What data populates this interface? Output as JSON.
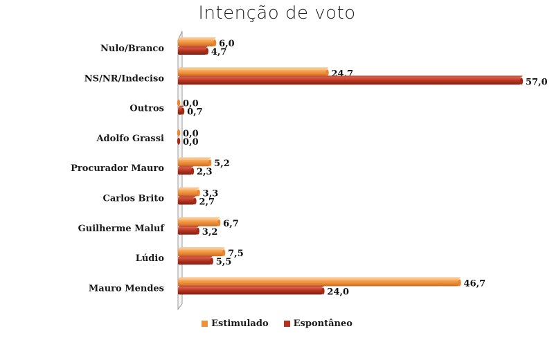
{
  "chart_data": {
    "type": "bar",
    "orientation": "horizontal",
    "title": "Intenção de voto",
    "categories": [
      "Nulo/Branco",
      "NS/NR/Indeciso",
      "Outros",
      "Adolfo Grassi",
      "Procurador Mauro",
      "Carlos Brito",
      "Guilherme Maluf",
      "Lúdio",
      "Mauro Mendes"
    ],
    "series": [
      {
        "name": "Estimulado",
        "color": "#F0913A",
        "values": [
          6.0,
          24.7,
          0.0,
          0.0,
          5.2,
          3.3,
          6.7,
          7.5,
          46.7
        ],
        "labels": [
          "6,0",
          "24,7",
          "0,0",
          "0,0",
          "5,2",
          "3,3",
          "6,7",
          "7,5",
          "46,7"
        ]
      },
      {
        "name": "Espontâneo",
        "color": "#B5321E",
        "values": [
          4.7,
          57.0,
          0.7,
          0.0,
          2.3,
          2.7,
          3.2,
          5.5,
          24.0
        ],
        "labels": [
          "4,7",
          "57,0",
          "0,7",
          "0,0",
          "2,3",
          "2,7",
          "3,2",
          "5,5",
          "24,0"
        ]
      }
    ],
    "xlim": [
      0,
      57
    ],
    "grid": false,
    "legend_position": "bottom"
  }
}
